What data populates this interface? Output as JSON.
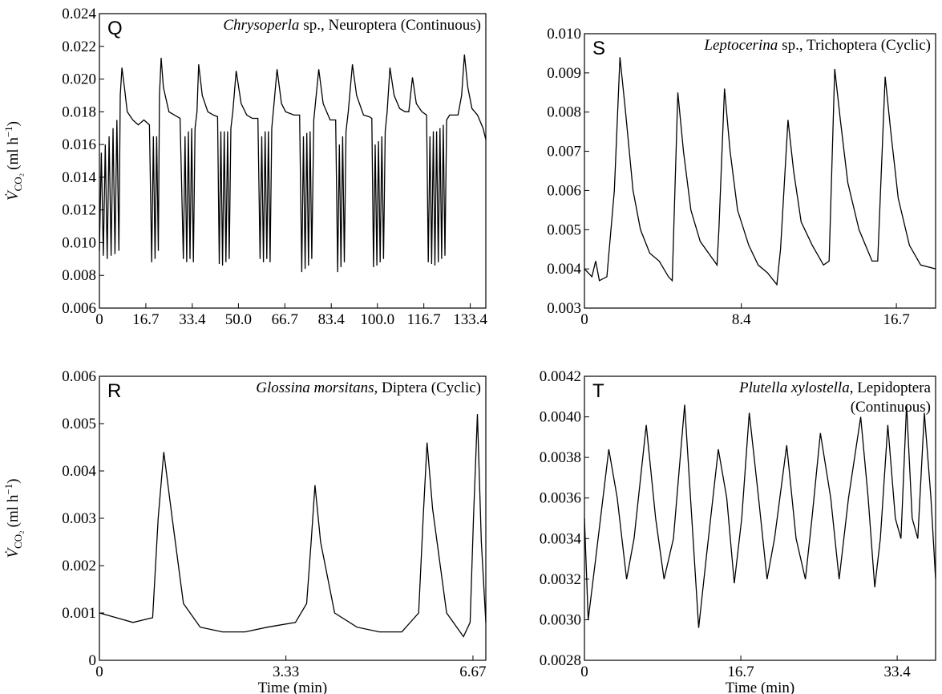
{
  "chart_data": [
    {
      "type": "line",
      "panel": "Q",
      "species": "Chrysoperla",
      "title": "sp., Neuroptera (Continuous)",
      "ylabel": "V̇",
      "ylabel_sub": "CO₂",
      "ylabel_unit": "(ml h",
      "ylabel_sup": "−1",
      "ylabel_end": ")",
      "color": "#000000",
      "xlim": [
        0,
        139
      ],
      "ylim": [
        0.006,
        0.024
      ],
      "xticks": [
        0,
        16.7,
        33.4,
        {
          "value": 50,
          "label": "50.0"
        },
        66.7,
        83.4,
        {
          "value": 100,
          "label": "100.0"
        },
        116.7,
        133.4
      ],
      "yticks": [
        0.006,
        0.008,
        {
          "value": 0.01,
          "label": "0.010"
        },
        0.012,
        0.014,
        0.016,
        0.018,
        {
          "value": 0.02,
          "label": "0.020"
        },
        0.022,
        0.024
      ],
      "x": [
        0,
        0.7,
        1.4,
        2.1,
        2.8,
        3.5,
        4.2,
        4.9,
        5.6,
        6.3,
        7,
        7.5,
        8.1,
        9,
        10,
        12,
        14,
        16,
        18,
        18.8,
        19.4,
        20,
        20.6,
        21.2,
        21.6,
        22.2,
        23,
        25,
        27,
        29,
        30.2,
        30.8,
        31.4,
        32,
        32.6,
        33.2,
        33.8,
        34.4,
        35.1,
        35.7,
        37,
        39,
        41,
        42.5,
        43.1,
        43.7,
        44.3,
        44.9,
        45.5,
        46.1,
        46.7,
        47.3,
        48,
        49.2,
        51,
        53,
        55,
        57,
        57.8,
        58.4,
        59,
        59.6,
        60.2,
        60.8,
        61.4,
        62,
        62.8,
        63.9,
        65.5,
        67,
        70,
        72,
        72.8,
        73.4,
        74,
        74.6,
        75.2,
        75.8,
        76.4,
        77.1,
        78.9,
        80.5,
        83,
        85,
        85.7,
        86.3,
        86.9,
        87.5,
        88.1,
        88.7,
        89.5,
        91,
        92.5,
        95,
        97,
        98,
        98.6,
        99.2,
        99.8,
        100.4,
        101,
        101.6,
        102.2,
        102.8,
        103.5,
        104.5,
        106,
        108,
        110,
        111.3,
        112.6,
        114,
        116,
        117.7,
        118.3,
        118.9,
        119.5,
        120.1,
        120.7,
        121.3,
        121.9,
        122.5,
        123.1,
        123.7,
        124.3,
        124.9,
        126,
        129,
        130.3,
        131.3,
        132.5,
        134,
        136,
        138,
        139
      ],
      "values": [
        0.0095,
        0.0155,
        0.0092,
        0.016,
        0.009,
        0.0165,
        0.0092,
        0.017,
        0.0093,
        0.0175,
        0.0095,
        0.019,
        0.0207,
        0.0195,
        0.018,
        0.0175,
        0.0172,
        0.0175,
        0.0172,
        0.0088,
        0.0165,
        0.009,
        0.0165,
        0.0095,
        0.019,
        0.0213,
        0.0195,
        0.018,
        0.0178,
        0.0176,
        0.009,
        0.0165,
        0.0088,
        0.0168,
        0.009,
        0.017,
        0.0088,
        0.017,
        0.018,
        0.0209,
        0.019,
        0.018,
        0.0178,
        0.0177,
        0.0087,
        0.0168,
        0.0086,
        0.0168,
        0.0088,
        0.0168,
        0.009,
        0.017,
        0.018,
        0.0205,
        0.0185,
        0.0178,
        0.0176,
        0.0176,
        0.009,
        0.0165,
        0.0088,
        0.0168,
        0.009,
        0.0168,
        0.0088,
        0.017,
        0.0185,
        0.0206,
        0.0185,
        0.018,
        0.0178,
        0.0178,
        0.0082,
        0.0165,
        0.0084,
        0.0167,
        0.0086,
        0.0168,
        0.009,
        0.0175,
        0.0206,
        0.0185,
        0.0175,
        0.0175,
        0.0082,
        0.016,
        0.0085,
        0.0165,
        0.0088,
        0.0168,
        0.018,
        0.0209,
        0.019,
        0.0178,
        0.0177,
        0.0176,
        0.0085,
        0.016,
        0.0086,
        0.0162,
        0.0088,
        0.0165,
        0.009,
        0.0168,
        0.018,
        0.0207,
        0.019,
        0.0182,
        0.018,
        0.018,
        0.0201,
        0.0185,
        0.018,
        0.0178,
        0.0088,
        0.0165,
        0.0087,
        0.0168,
        0.0086,
        0.0168,
        0.0088,
        0.017,
        0.009,
        0.0172,
        0.0092,
        0.0175,
        0.0178,
        0.0178,
        0.019,
        0.0215,
        0.0195,
        0.0182,
        0.0178,
        0.017,
        0.0163
      ]
    },
    {
      "type": "line",
      "panel": "S",
      "species": "Leptocerina",
      "title": "sp., Trichoptera (Cyclic)",
      "color": "#000000",
      "xlim": [
        0,
        18.8
      ],
      "ylim": [
        0.003,
        0.01
      ],
      "xticks": [
        0,
        8.4,
        16.7
      ],
      "yticks": [
        0.003,
        0.004,
        0.005,
        0.006,
        0.007,
        0.008,
        0.009,
        {
          "value": 0.01,
          "label": "0.010"
        }
      ],
      "x": [
        0,
        0.4,
        0.6,
        0.8,
        1.2,
        1.6,
        1.9,
        2.2,
        2.6,
        3,
        3.5,
        4,
        4.5,
        4.7,
        5,
        5.3,
        5.7,
        6.2,
        6.8,
        7.1,
        7.2,
        7.5,
        7.8,
        8.2,
        8.8,
        9.3,
        9.8,
        10.3,
        10.5,
        10.9,
        11.2,
        11.6,
        12.2,
        12.8,
        13.1,
        13.4,
        13.7,
        14.1,
        14.7,
        15.4,
        15.7,
        16.1,
        16.4,
        16.8,
        17.4,
        18,
        18.8
      ],
      "values": [
        0.004,
        0.0038,
        0.0042,
        0.0037,
        0.0038,
        0.006,
        0.0094,
        0.008,
        0.006,
        0.005,
        0.0044,
        0.0042,
        0.0038,
        0.0037,
        0.0085,
        0.007,
        0.0055,
        0.0047,
        0.0043,
        0.0041,
        0.005,
        0.0086,
        0.007,
        0.0055,
        0.0046,
        0.0041,
        0.0039,
        0.0036,
        0.0045,
        0.0078,
        0.0065,
        0.0052,
        0.0046,
        0.0041,
        0.0042,
        0.0091,
        0.0078,
        0.0062,
        0.005,
        0.0042,
        0.0042,
        0.0089,
        0.0075,
        0.0058,
        0.0046,
        0.0041,
        0.004
      ]
    },
    {
      "type": "line",
      "panel": "R",
      "species": "Glossina morsitans",
      "title": ", Diptera (Cyclic)",
      "ylabel": "V̇",
      "ylabel_sub": "CO₂",
      "ylabel_unit": "(ml h",
      "ylabel_sup": "−1",
      "ylabel_end": ")",
      "xlabel": "Time (min)",
      "color": "#000000",
      "xlim": [
        0,
        6.9
      ],
      "ylim": [
        0,
        0.006
      ],
      "xticks": [
        0,
        3.33,
        6.67
      ],
      "yticks": [
        0,
        0.001,
        0.002,
        0.003,
        0.004,
        0.005,
        0.006
      ],
      "x": [
        0,
        0.3,
        0.6,
        0.95,
        1.05,
        1.15,
        1.3,
        1.5,
        1.8,
        2.2,
        2.6,
        3,
        3.5,
        3.7,
        3.78,
        3.85,
        3.95,
        4.2,
        4.6,
        5,
        5.4,
        5.7,
        5.78,
        5.85,
        5.95,
        6.2,
        6.5,
        6.62,
        6.68,
        6.75,
        6.82,
        6.9
      ],
      "values": [
        0.001,
        0.0009,
        0.0008,
        0.0009,
        0.003,
        0.0044,
        0.003,
        0.0012,
        0.0007,
        0.0006,
        0.0006,
        0.0007,
        0.0008,
        0.0012,
        0.0025,
        0.0037,
        0.0025,
        0.001,
        0.0007,
        0.0006,
        0.0006,
        0.001,
        0.003,
        0.0046,
        0.0032,
        0.001,
        0.0005,
        0.0008,
        0.003,
        0.0052,
        0.0025,
        0.0008
      ]
    },
    {
      "type": "line",
      "panel": "T",
      "species": "Plutella xylostella",
      "title": ", Lepidoptera",
      "title2": "(Continuous)",
      "xlabel": "Time (min)",
      "color": "#000000",
      "xlim": [
        0,
        37.5
      ],
      "ylim": [
        0.0028,
        0.0042
      ],
      "xticks": [
        0,
        16.7,
        33.4
      ],
      "yticks": [
        0.0028,
        {
          "value": 0.003,
          "label": "0.0030"
        },
        0.0032,
        0.0034,
        0.0036,
        0.0038,
        {
          "value": 0.004,
          "label": "0.0040"
        },
        0.0042
      ],
      "x": [
        0,
        0.4,
        1.2,
        2.6,
        3.5,
        4.5,
        5.3,
        6.6,
        7.6,
        8.5,
        9.5,
        10.7,
        11.6,
        12.2,
        13,
        14.3,
        15.2,
        16,
        16.8,
        17.6,
        18.6,
        19.5,
        20.3,
        21.6,
        22.6,
        23.6,
        24.3,
        25.2,
        26.3,
        27.2,
        28.2,
        29.5,
        30.3,
        31,
        31.6,
        32.4,
        33.2,
        33.8,
        34.4,
        35,
        35.6,
        36.3,
        37,
        37.5
      ],
      "values": [
        0.0035,
        0.003,
        0.0033,
        0.00384,
        0.0036,
        0.0032,
        0.0034,
        0.00396,
        0.0035,
        0.0032,
        0.0034,
        0.00406,
        0.0034,
        0.00296,
        0.0033,
        0.00384,
        0.0036,
        0.00318,
        0.0035,
        0.00402,
        0.0036,
        0.0032,
        0.0034,
        0.00386,
        0.0034,
        0.0032,
        0.0035,
        0.00392,
        0.0036,
        0.0032,
        0.0036,
        0.004,
        0.0036,
        0.00316,
        0.0034,
        0.00396,
        0.0035,
        0.0034,
        0.00406,
        0.0035,
        0.0034,
        0.00402,
        0.0036,
        0.0032
      ]
    }
  ]
}
